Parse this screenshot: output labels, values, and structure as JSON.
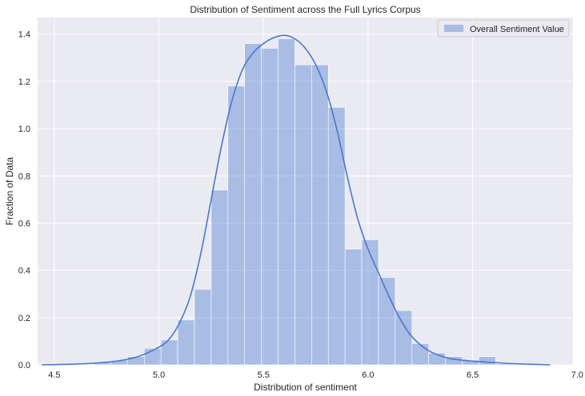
{
  "chart_data": {
    "type": "bar",
    "title": "Distribution of Sentiment across the Full Lyrics Corpus",
    "xlabel": "Distribution of sentiment",
    "ylabel": "Fraction of Data",
    "xlim": [
      4.42,
      6.98
    ],
    "ylim": [
      0,
      1.47
    ],
    "xticks": [
      4.5,
      5.0,
      5.5,
      6.0,
      6.5,
      7.0
    ],
    "xtick_labels": [
      "4.5",
      "5.0",
      "5.5",
      "6.0",
      "6.5",
      "7.0"
    ],
    "yticks": [
      0.0,
      0.2,
      0.4,
      0.6,
      0.8,
      1.0,
      1.2,
      1.4
    ],
    "ytick_labels": [
      "0.0",
      "0.2",
      "0.4",
      "0.6",
      "0.8",
      "1.0",
      "1.2",
      "1.4"
    ],
    "grid": true,
    "legend_position": "top-right",
    "series": [
      {
        "name": "Overall Sentiment Value",
        "type": "histogram",
        "color": "#4878cf",
        "bins": [
          {
            "x0": 4.69,
            "x1": 4.77,
            "value": 0.01
          },
          {
            "x0": 4.77,
            "x1": 4.85,
            "value": 0.02
          },
          {
            "x0": 4.85,
            "x1": 4.93,
            "value": 0.035
          },
          {
            "x0": 4.93,
            "x1": 5.01,
            "value": 0.07
          },
          {
            "x0": 5.01,
            "x1": 5.09,
            "value": 0.105
          },
          {
            "x0": 5.09,
            "x1": 5.17,
            "value": 0.19
          },
          {
            "x0": 5.17,
            "x1": 5.25,
            "value": 0.32
          },
          {
            "x0": 5.25,
            "x1": 5.33,
            "value": 0.74
          },
          {
            "x0": 5.33,
            "x1": 5.41,
            "value": 1.18
          },
          {
            "x0": 5.41,
            "x1": 5.49,
            "value": 1.36
          },
          {
            "x0": 5.49,
            "x1": 5.57,
            "value": 1.34
          },
          {
            "x0": 5.57,
            "x1": 5.65,
            "value": 1.38
          },
          {
            "x0": 5.65,
            "x1": 5.73,
            "value": 1.27
          },
          {
            "x0": 5.73,
            "x1": 5.81,
            "value": 1.27
          },
          {
            "x0": 5.81,
            "x1": 5.89,
            "value": 1.09
          },
          {
            "x0": 5.89,
            "x1": 5.97,
            "value": 0.49
          },
          {
            "x0": 5.97,
            "x1": 6.05,
            "value": 0.53
          },
          {
            "x0": 6.05,
            "x1": 6.13,
            "value": 0.37
          },
          {
            "x0": 6.13,
            "x1": 6.21,
            "value": 0.23
          },
          {
            "x0": 6.21,
            "x1": 6.29,
            "value": 0.09
          },
          {
            "x0": 6.29,
            "x1": 6.37,
            "value": 0.05
          },
          {
            "x0": 6.37,
            "x1": 6.45,
            "value": 0.035
          },
          {
            "x0": 6.45,
            "x1": 6.53,
            "value": 0.02
          },
          {
            "x0": 6.53,
            "x1": 6.61,
            "value": 0.035
          },
          {
            "x0": 6.61,
            "x1": 6.69,
            "value": 0.005
          }
        ]
      },
      {
        "type": "kde",
        "color": "#4878cf",
        "points": [
          [
            4.44,
            0.0
          ],
          [
            4.5,
            0.001
          ],
          [
            4.6,
            0.003
          ],
          [
            4.7,
            0.008
          ],
          [
            4.8,
            0.016
          ],
          [
            4.9,
            0.035
          ],
          [
            5.0,
            0.075
          ],
          [
            5.05,
            0.11
          ],
          [
            5.1,
            0.18
          ],
          [
            5.15,
            0.29
          ],
          [
            5.2,
            0.47
          ],
          [
            5.25,
            0.7
          ],
          [
            5.3,
            0.93
          ],
          [
            5.35,
            1.12
          ],
          [
            5.4,
            1.25
          ],
          [
            5.45,
            1.32
          ],
          [
            5.5,
            1.36
          ],
          [
            5.55,
            1.385
          ],
          [
            5.6,
            1.395
          ],
          [
            5.65,
            1.38
          ],
          [
            5.7,
            1.34
          ],
          [
            5.75,
            1.27
          ],
          [
            5.8,
            1.16
          ],
          [
            5.85,
            1.0
          ],
          [
            5.9,
            0.8
          ],
          [
            5.95,
            0.62
          ],
          [
            6.0,
            0.49
          ],
          [
            6.05,
            0.39
          ],
          [
            6.1,
            0.29
          ],
          [
            6.15,
            0.2
          ],
          [
            6.2,
            0.13
          ],
          [
            6.25,
            0.085
          ],
          [
            6.3,
            0.055
          ],
          [
            6.35,
            0.037
          ],
          [
            6.4,
            0.025
          ],
          [
            6.5,
            0.016
          ],
          [
            6.6,
            0.01
          ],
          [
            6.7,
            0.005
          ],
          [
            6.8,
            0.002
          ],
          [
            6.87,
            0.0
          ]
        ]
      }
    ]
  }
}
